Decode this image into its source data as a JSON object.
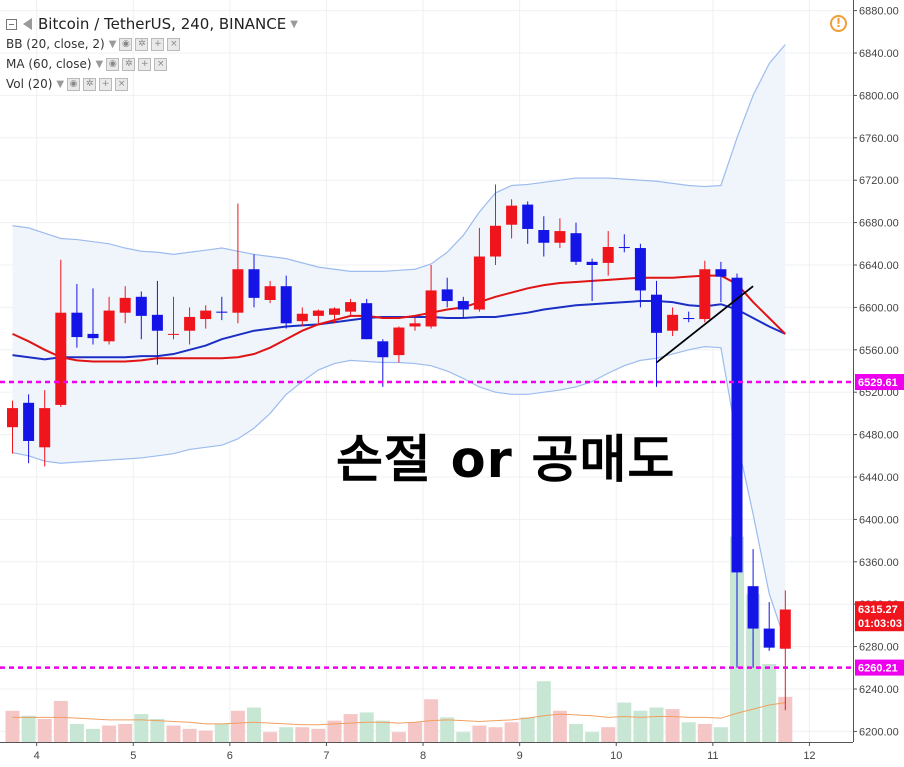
{
  "header": {
    "symbol": "Bitcoin / TetherUS, 240, BINANCE",
    "indicators": [
      {
        "label": "BB (20, close, 2)"
      },
      {
        "label": "MA (60, close)"
      },
      {
        "label": "Vol (20)"
      }
    ]
  },
  "annotation": {
    "text": "손절 or 공매도"
  },
  "colors": {
    "up": "#f0141c",
    "down": "#1414e6",
    "ma": "#e01414",
    "bb_basis": "#1c2fc4",
    "bb_band": "#9dbcee",
    "bb_fill": "#f0f5fc",
    "vol_up": "#f5c6c6",
    "vol_down": "#c8e6d4",
    "vol_ma": "#f0a060",
    "hline": "#ee00ee",
    "trend": "#000000"
  },
  "chart_data": {
    "type": "candlestick",
    "title": "Bitcoin / TetherUS, 240, BINANCE",
    "ylim": [
      6190,
      6890
    ],
    "y_ticks": [
      6200,
      6240,
      6280,
      6320,
      6360,
      6400,
      6440,
      6480,
      6520,
      6560,
      6600,
      6640,
      6680,
      6720,
      6760,
      6800,
      6840,
      6880
    ],
    "x_ticks": [
      {
        "label": "4",
        "at": 1.5
      },
      {
        "label": "5",
        "at": 7.5
      },
      {
        "label": "6",
        "at": 13.5
      },
      {
        "label": "7",
        "at": 19.5
      },
      {
        "label": "8",
        "at": 25.5
      },
      {
        "label": "9",
        "at": 31.5
      },
      {
        "label": "10",
        "at": 37.5
      },
      {
        "label": "11",
        "at": 43.5
      },
      {
        "label": "12",
        "at": 49.5
      }
    ],
    "candles": [
      {
        "o": 6487,
        "h": 6512,
        "l": 6462,
        "c": 6505
      },
      {
        "o": 6510,
        "h": 6518,
        "l": 6453,
        "c": 6474
      },
      {
        "o": 6468,
        "h": 6522,
        "l": 6450,
        "c": 6505
      },
      {
        "o": 6508,
        "h": 6645,
        "l": 6506,
        "c": 6595
      },
      {
        "o": 6595,
        "h": 6622,
        "l": 6562,
        "c": 6572
      },
      {
        "o": 6575,
        "h": 6618,
        "l": 6565,
        "c": 6571
      },
      {
        "o": 6568,
        "h": 6610,
        "l": 6565,
        "c": 6597
      },
      {
        "o": 6595,
        "h": 6620,
        "l": 6585,
        "c": 6609
      },
      {
        "o": 6610,
        "h": 6615,
        "l": 6570,
        "c": 6592
      },
      {
        "o": 6593,
        "h": 6625,
        "l": 6546,
        "c": 6578
      },
      {
        "o": 6575,
        "h": 6610,
        "l": 6570,
        "c": 6575
      },
      {
        "o": 6578,
        "h": 6600,
        "l": 6565,
        "c": 6591
      },
      {
        "o": 6589,
        "h": 6602,
        "l": 6580,
        "c": 6597
      },
      {
        "o": 6596,
        "h": 6610,
        "l": 6588,
        "c": 6595
      },
      {
        "o": 6595,
        "h": 6698,
        "l": 6585,
        "c": 6636
      },
      {
        "o": 6636,
        "h": 6650,
        "l": 6600,
        "c": 6609
      },
      {
        "o": 6607,
        "h": 6625,
        "l": 6604,
        "c": 6620
      },
      {
        "o": 6620,
        "h": 6630,
        "l": 6580,
        "c": 6585
      },
      {
        "o": 6587,
        "h": 6600,
        "l": 6582,
        "c": 6594
      },
      {
        "o": 6592,
        "h": 6598,
        "l": 6585,
        "c": 6597
      },
      {
        "o": 6593,
        "h": 6600,
        "l": 6585,
        "c": 6599
      },
      {
        "o": 6596,
        "h": 6608,
        "l": 6592,
        "c": 6605
      },
      {
        "o": 6604,
        "h": 6608,
        "l": 6570,
        "c": 6570
      },
      {
        "o": 6568,
        "h": 6570,
        "l": 6525,
        "c": 6553
      },
      {
        "o": 6555,
        "h": 6582,
        "l": 6548,
        "c": 6581
      },
      {
        "o": 6582,
        "h": 6590,
        "l": 6578,
        "c": 6585
      },
      {
        "o": 6582,
        "h": 6640,
        "l": 6580,
        "c": 6616
      },
      {
        "o": 6617,
        "h": 6628,
        "l": 6600,
        "c": 6606
      },
      {
        "o": 6606,
        "h": 6610,
        "l": 6590,
        "c": 6598
      },
      {
        "o": 6598,
        "h": 6675,
        "l": 6596,
        "c": 6648
      },
      {
        "o": 6648,
        "h": 6716,
        "l": 6640,
        "c": 6677
      },
      {
        "o": 6678,
        "h": 6702,
        "l": 6665,
        "c": 6696
      },
      {
        "o": 6697,
        "h": 6700,
        "l": 6660,
        "c": 6674
      },
      {
        "o": 6673,
        "h": 6686,
        "l": 6648,
        "c": 6661
      },
      {
        "o": 6661,
        "h": 6684,
        "l": 6656,
        "c": 6672
      },
      {
        "o": 6670,
        "h": 6680,
        "l": 6640,
        "c": 6643
      },
      {
        "o": 6643,
        "h": 6646,
        "l": 6606,
        "c": 6640
      },
      {
        "o": 6642,
        "h": 6672,
        "l": 6630,
        "c": 6657
      },
      {
        "o": 6657,
        "h": 6669,
        "l": 6652,
        "c": 6656
      },
      {
        "o": 6656,
        "h": 6660,
        "l": 6600,
        "c": 6616
      },
      {
        "o": 6612,
        "h": 6625,
        "l": 6525,
        "c": 6576
      },
      {
        "o": 6578,
        "h": 6600,
        "l": 6573,
        "c": 6593
      },
      {
        "o": 6590,
        "h": 6596,
        "l": 6586,
        "c": 6589
      },
      {
        "o": 6589,
        "h": 6644,
        "l": 6586,
        "c": 6636
      },
      {
        "o": 6636,
        "h": 6643,
        "l": 6605,
        "c": 6629
      },
      {
        "o": 6628,
        "h": 6632,
        "l": 6260,
        "c": 6350
      },
      {
        "o": 6337,
        "h": 6372,
        "l": 6260,
        "c": 6297
      },
      {
        "o": 6297,
        "h": 6322,
        "l": 6276,
        "c": 6279
      },
      {
        "o": 6278,
        "h": 6333,
        "l": 6220,
        "c": 6315
      }
    ],
    "volume": [
      38,
      32,
      28,
      50,
      22,
      16,
      20,
      22,
      34,
      28,
      20,
      16,
      14,
      22,
      38,
      42,
      12,
      18,
      18,
      16,
      26,
      34,
      36,
      26,
      12,
      24,
      52,
      30,
      12,
      20,
      18,
      24,
      30,
      74,
      38,
      22,
      12,
      18,
      48,
      38,
      42,
      40,
      24,
      22,
      18,
      250,
      180,
      95,
      55
    ],
    "vol_ylim": [
      0,
      280
    ],
    "ma60": [
      6575,
      6568,
      6560,
      6553,
      6550,
      6549,
      6549,
      6549,
      6550,
      6552,
      6552,
      6552,
      6552,
      6552,
      6553,
      6556,
      6562,
      6570,
      6578,
      6584,
      6588,
      6592,
      6592,
      6590,
      6590,
      6592,
      6595,
      6598,
      6600,
      6605,
      6610,
      6614,
      6618,
      6621,
      6623,
      6624,
      6625,
      6626,
      6627,
      6628,
      6628,
      6628,
      6629,
      6630,
      6630,
      6622,
      6605,
      6590,
      6575
    ],
    "bb_basis": [
      6555,
      6553,
      6551,
      6553,
      6553,
      6553,
      6553,
      6553,
      6554,
      6554,
      6556,
      6560,
      6564,
      6570,
      6574,
      6578,
      6580,
      6582,
      6583,
      6584,
      6586,
      6588,
      6590,
      6591,
      6591,
      6591,
      6591,
      6590,
      6590,
      6591,
      6591,
      6593,
      6595,
      6598,
      6600,
      6602,
      6603,
      6604,
      6605,
      6606,
      6606,
      6605,
      6602,
      6601,
      6603,
      6598,
      6590,
      6582,
      6575
    ],
    "bb_upper": [
      6677,
      6675,
      6670,
      6665,
      6664,
      6662,
      6660,
      6656,
      6653,
      6652,
      6650,
      6652,
      6654,
      6656,
      6653,
      6650,
      6648,
      6646,
      6642,
      6638,
      6636,
      6634,
      6634,
      6634,
      6635,
      6636,
      6641,
      6652,
      6668,
      6690,
      6708,
      6715,
      6716,
      6718,
      6720,
      6722,
      6722,
      6722,
      6721,
      6720,
      6719,
      6717,
      6715,
      6714,
      6715,
      6760,
      6800,
      6830,
      6848
    ],
    "bb_lower": [
      6463,
      6460,
      6455,
      6453,
      6454,
      6455,
      6456,
      6457,
      6458,
      6460,
      6462,
      6466,
      6468,
      6470,
      6476,
      6486,
      6500,
      6518,
      6530,
      6541,
      6547,
      6550,
      6549,
      6548,
      6548,
      6547,
      6545,
      6540,
      6533,
      6525,
      6520,
      6518,
      6518,
      6520,
      6522,
      6525,
      6530,
      6538,
      6545,
      6550,
      6552,
      6556,
      6560,
      6563,
      6562,
      6475,
      6405,
      6330,
      6285
    ],
    "vol_ma": [
      30,
      30,
      30,
      30,
      29,
      28,
      27,
      27,
      27,
      26,
      25,
      24,
      22,
      22,
      23,
      24,
      23,
      22,
      21,
      21,
      22,
      23,
      24,
      24,
      23,
      24,
      26,
      27,
      26,
      25,
      26,
      27,
      29,
      32,
      34,
      33,
      32,
      30,
      31,
      30,
      31,
      31,
      30,
      30,
      29,
      35,
      40,
      45,
      48
    ],
    "price_levels": [
      {
        "value": 6529.61,
        "label": "6529.61"
      },
      {
        "value": 6260.21,
        "label": "6260.21"
      }
    ],
    "last_price": {
      "value": 6315.27,
      "label": "6315.27",
      "countdown": "01:03:03"
    },
    "trend_line": {
      "from": {
        "i": 40,
        "v": 6548
      },
      "to": {
        "i": 46,
        "v": 6620
      }
    }
  }
}
